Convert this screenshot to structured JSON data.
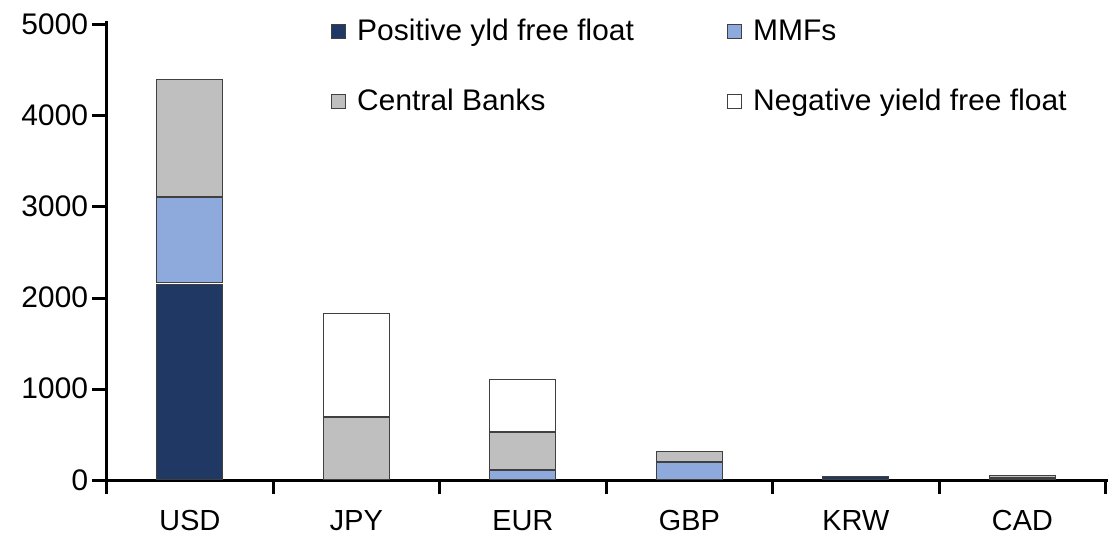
{
  "chart_data": {
    "type": "bar",
    "stacked": true,
    "title": "",
    "xlabel": "",
    "ylabel": "",
    "categories": [
      "USD",
      "JPY",
      "EUR",
      "GBP",
      "KRW",
      "CAD"
    ],
    "series": [
      {
        "name": "Positive yld free float",
        "color": "#203864",
        "values": [
          2160,
          0,
          0,
          0,
          45,
          25
        ]
      },
      {
        "name": "MMFs",
        "color": "#8EA9DB",
        "values": [
          950,
          0,
          110,
          200,
          0,
          0
        ]
      },
      {
        "name": "Central Banks",
        "color": "#BFBFBF",
        "values": [
          1290,
          700,
          420,
          125,
          0,
          30
        ]
      },
      {
        "name": "Negative yield free float",
        "color": "#FFFFFF",
        "values": [
          0,
          1140,
          580,
          0,
          0,
          0
        ]
      }
    ],
    "totals": [
      4400,
      1840,
      1110,
      325,
      45,
      55
    ],
    "ylim": [
      0,
      5000
    ],
    "ytick_interval": 1000,
    "yticks": [
      "0",
      "1000",
      "2000",
      "3000",
      "4000",
      "5000"
    ],
    "grid": false,
    "legend_position": "top",
    "legend_order": [
      0,
      1,
      2,
      3
    ],
    "colors": {
      "axis": "#000000",
      "segment_border": "#404040",
      "background": "#FFFFFF",
      "text": "#000000"
    }
  }
}
